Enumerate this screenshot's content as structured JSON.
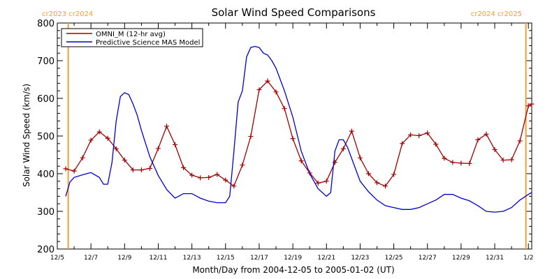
{
  "chart_data": {
    "type": "line",
    "title": "Solar Wind Speed Comparisons",
    "xlabel": "Month/Day from 2004-12-05 to 2005-01-02 (UT)",
    "ylabel": "Solar Wind Speed (km/s)",
    "xlim": [
      0,
      28.2
    ],
    "ylim": [
      200,
      800
    ],
    "x_ticks": [
      {
        "x": 0,
        "label": "12/5"
      },
      {
        "x": 2,
        "label": "12/7"
      },
      {
        "x": 4,
        "label": "12/9"
      },
      {
        "x": 6,
        "label": "12/11"
      },
      {
        "x": 8,
        "label": "12/13"
      },
      {
        "x": 10,
        "label": "12/15"
      },
      {
        "x": 12,
        "label": "12/17"
      },
      {
        "x": 14,
        "label": "12/19"
      },
      {
        "x": 16,
        "label": "12/21"
      },
      {
        "x": 18,
        "label": "12/23"
      },
      {
        "x": 20,
        "label": "12/25"
      },
      {
        "x": 22,
        "label": "12/27"
      },
      {
        "x": 24,
        "label": "12/29"
      },
      {
        "x": 26,
        "label": "12/31"
      },
      {
        "x": 28,
        "label": "1/2"
      }
    ],
    "y_ticks": [
      200,
      300,
      400,
      500,
      600,
      700,
      800
    ],
    "grid": false,
    "legend_position": "top-left",
    "carrington": {
      "left": {
        "x": 0.65,
        "label": "cr2023 cr2024"
      },
      "right": {
        "x": 27.85,
        "label": "cr2024 cr2025"
      },
      "color": "#f0a030"
    },
    "series": [
      {
        "name": "OMNI_M (12-hr avg)",
        "color": "#a00000",
        "marker": "plus",
        "x": [
          0.5,
          1.0,
          1.5,
          2.0,
          2.5,
          3.0,
          3.5,
          4.0,
          4.5,
          5.0,
          5.5,
          6.0,
          6.5,
          7.0,
          7.5,
          8.0,
          8.5,
          9.0,
          9.5,
          10.0,
          10.5,
          11.0,
          11.5,
          12.0,
          12.5,
          13.0,
          13.5,
          14.0,
          14.5,
          15.0,
          15.5,
          16.0,
          16.5,
          17.0,
          17.5,
          18.0,
          18.5,
          19.0,
          19.5,
          20.0,
          20.5,
          21.0,
          21.5,
          22.0,
          22.5,
          23.0,
          23.5,
          24.0,
          24.5,
          25.0,
          25.5,
          26.0,
          26.5,
          27.0,
          27.5,
          28.0,
          28.2
        ],
        "values": [
          413,
          407,
          442,
          489,
          511,
          494,
          466,
          436,
          410,
          410,
          414,
          467,
          526,
          477,
          416,
          396,
          389,
          390,
          398,
          383,
          367,
          423,
          499,
          623,
          646,
          617,
          573,
          493,
          434,
          402,
          375,
          380,
          430,
          466,
          513,
          442,
          400,
          376,
          367,
          398,
          480,
          503,
          501,
          508,
          478,
          441,
          430,
          428,
          427,
          490,
          505,
          464,
          436,
          437,
          487,
          580,
          585
        ]
      },
      {
        "name": "Predictive Science MAS Model",
        "color": "#0000d0",
        "marker": "none",
        "x": [
          0.5,
          0.75,
          1.0,
          1.5,
          2.0,
          2.5,
          2.75,
          3.0,
          3.25,
          3.5,
          3.75,
          4.0,
          4.25,
          4.5,
          4.75,
          5.0,
          5.5,
          6.0,
          6.5,
          7.0,
          7.5,
          8.0,
          8.5,
          9.0,
          9.5,
          10.0,
          10.25,
          10.5,
          10.75,
          11.0,
          11.25,
          11.5,
          11.75,
          12.0,
          12.25,
          12.5,
          12.75,
          13.0,
          13.5,
          14.0,
          14.5,
          15.0,
          15.5,
          16.0,
          16.25,
          16.5,
          16.75,
          17.0,
          17.25,
          17.5,
          17.75,
          18.0,
          18.5,
          19.0,
          19.5,
          20.0,
          20.5,
          21.0,
          21.5,
          22.0,
          22.5,
          23.0,
          23.5,
          24.0,
          24.5,
          25.0,
          25.5,
          26.0,
          26.5,
          27.0,
          27.5,
          28.0,
          28.2
        ],
        "values": [
          340,
          378,
          390,
          397,
          403,
          390,
          372,
          372,
          430,
          540,
          605,
          615,
          610,
          585,
          555,
          515,
          445,
          395,
          358,
          335,
          347,
          347,
          335,
          327,
          323,
          323,
          340,
          460,
          590,
          620,
          710,
          735,
          738,
          735,
          720,
          715,
          700,
          680,
          620,
          550,
          460,
          400,
          360,
          340,
          350,
          460,
          490,
          490,
          470,
          440,
          410,
          380,
          352,
          330,
          315,
          310,
          305,
          305,
          310,
          320,
          330,
          345,
          345,
          335,
          328,
          315,
          300,
          298,
          300,
          310,
          330,
          345,
          350
        ]
      }
    ]
  }
}
